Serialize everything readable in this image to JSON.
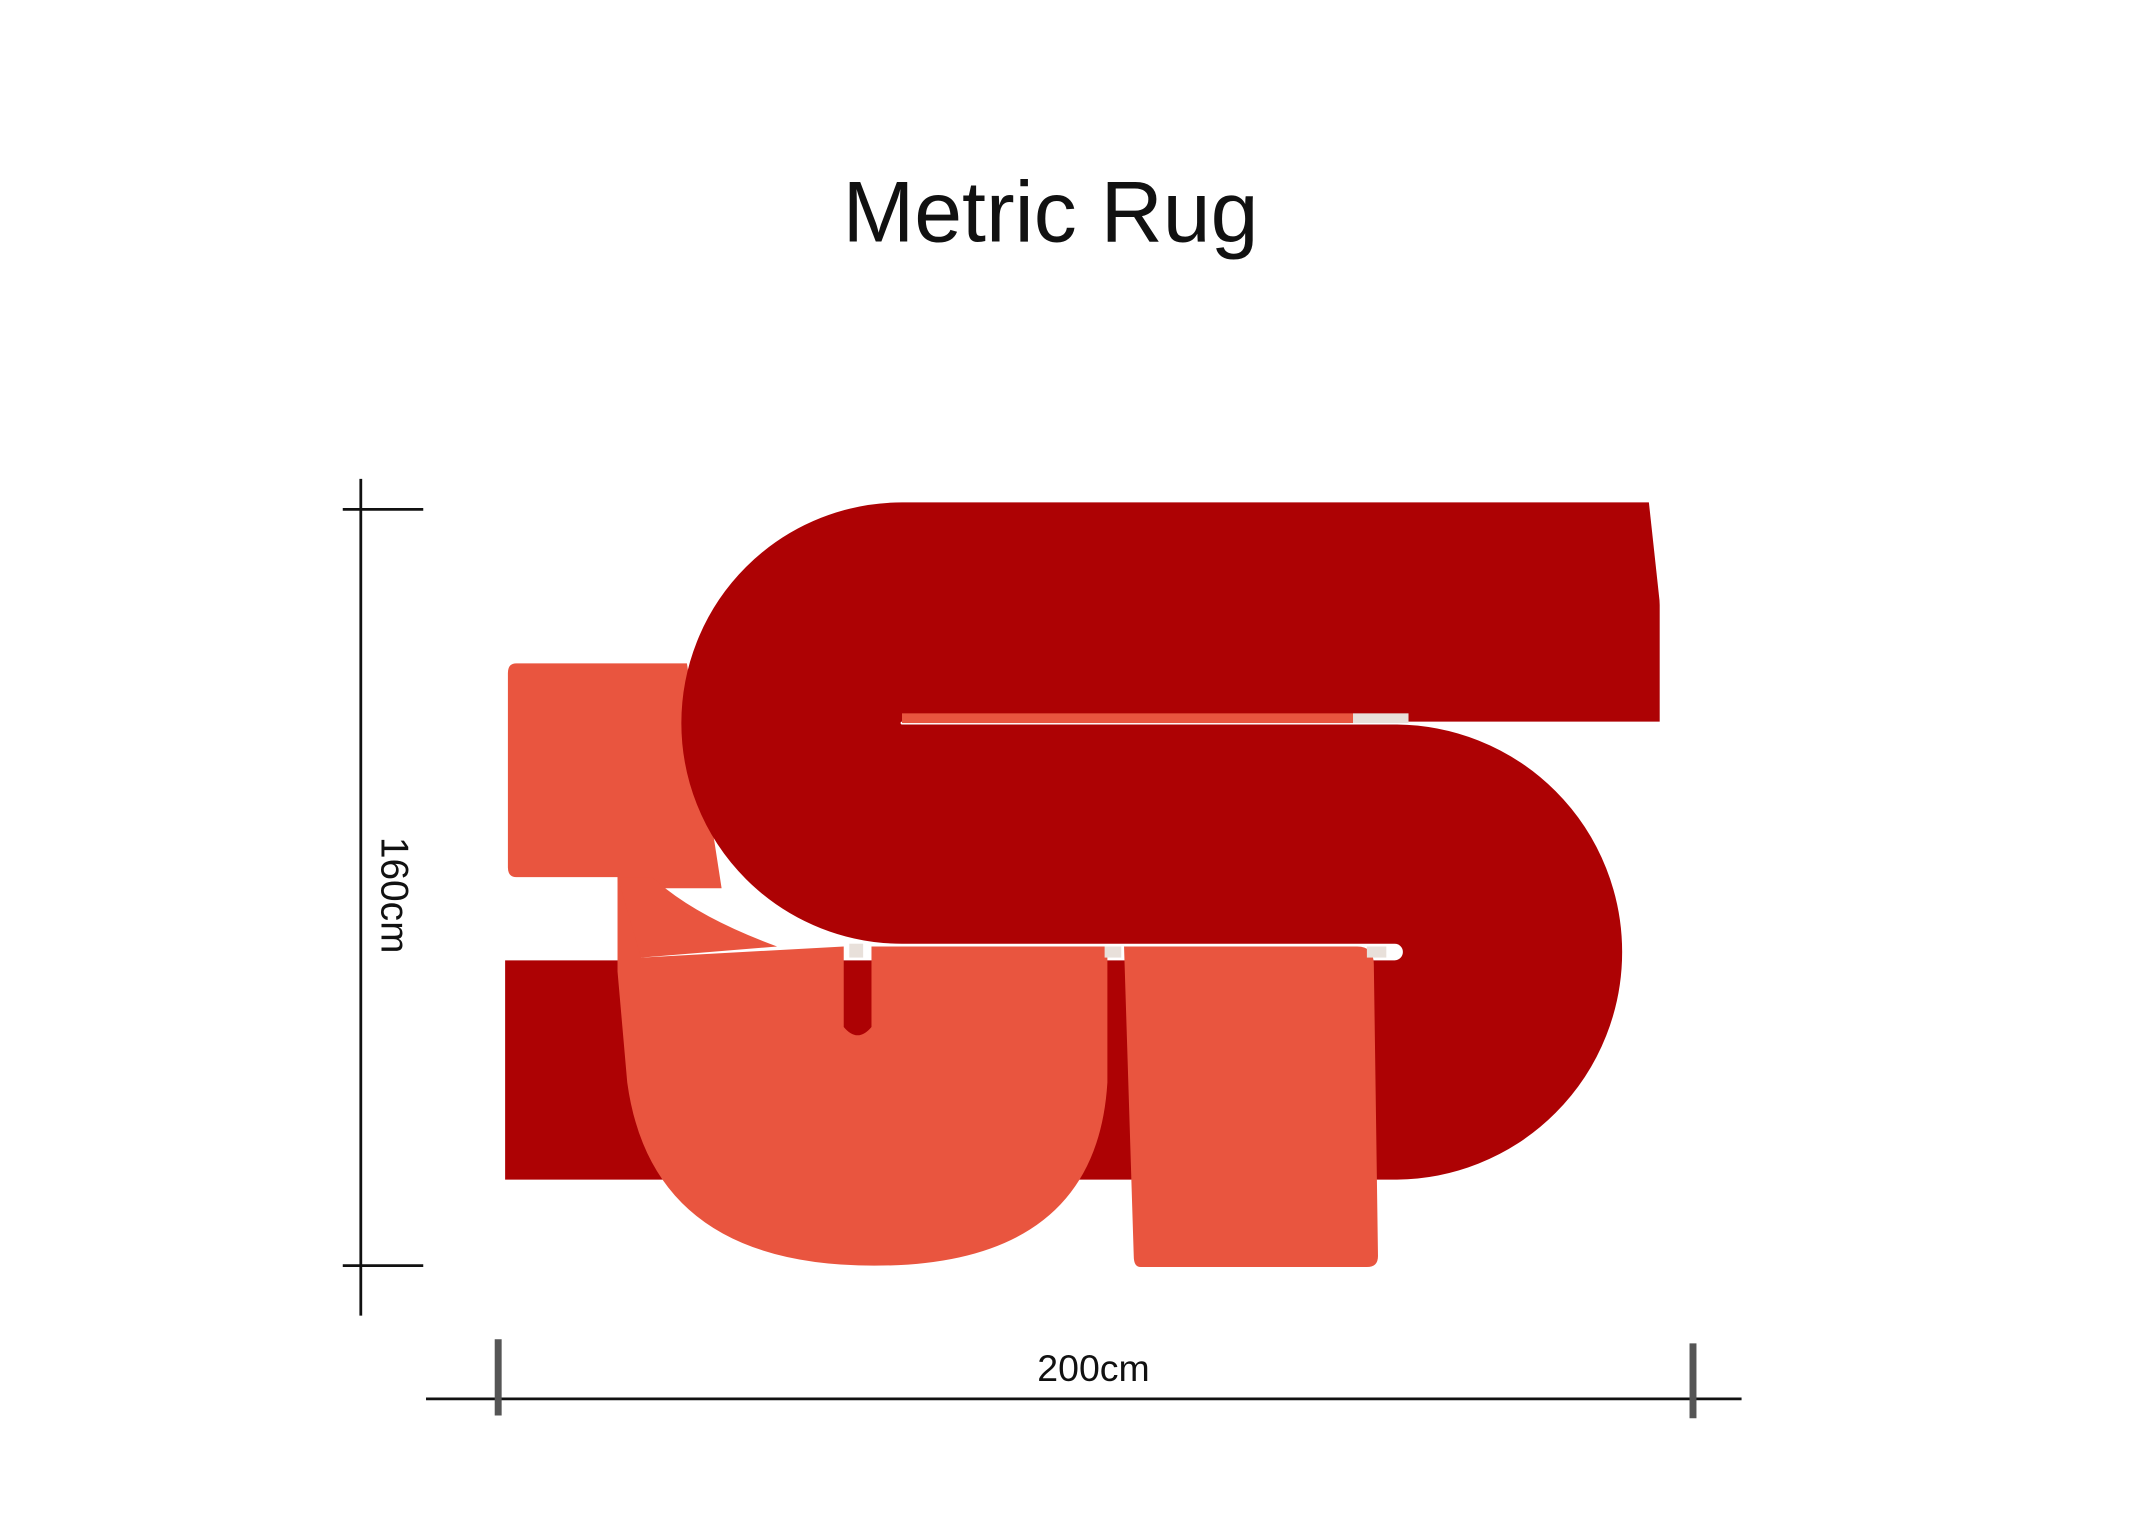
{
  "title": "Metric Rug",
  "dimensions": {
    "height_label": "160cm",
    "width_label": "200cm"
  },
  "colors": {
    "dark_red": "#ad0204",
    "coral": "#e9553f",
    "background": "#ffffff"
  }
}
